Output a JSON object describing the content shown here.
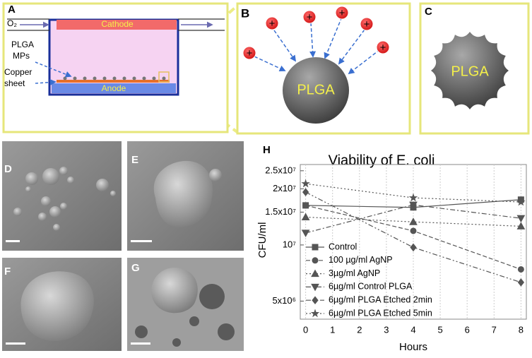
{
  "panels": {
    "A": {
      "label": "A",
      "o2": "O₂",
      "cathode": "Cathode",
      "plga_mps": [
        "PLGA",
        "MPs"
      ],
      "copper": [
        "Copper",
        "sheet"
      ],
      "anode": "Anode"
    },
    "B": {
      "label": "B",
      "particle": "PLGA"
    },
    "C": {
      "label": "C",
      "particle": "PLGA"
    },
    "D": {
      "label": "D"
    },
    "E": {
      "label": "E"
    },
    "F": {
      "label": "F"
    },
    "G": {
      "label": "G"
    },
    "H": {
      "label": "H"
    }
  },
  "chart_data": {
    "type": "line",
    "title": "Viability of E. coli",
    "xlabel": "Hours",
    "ylabel": "CFU/ml",
    "x": [
      0,
      4,
      8
    ],
    "xlim": [
      -0.2,
      8.2
    ],
    "xticks": [
      0,
      1,
      2,
      3,
      4,
      5,
      6,
      7,
      8
    ],
    "ylim": [
      4000000,
      27000000
    ],
    "yscale": "log",
    "yticks": [
      {
        "value": 5000000,
        "label": "5x10⁶"
      },
      {
        "value": 10000000,
        "label": "10⁷"
      },
      {
        "value": 15000000,
        "label": "1.5x10⁷"
      },
      {
        "value": 20000000,
        "label": "2x10⁷"
      },
      {
        "value": 25000000,
        "label": "2.5x10⁷"
      }
    ],
    "legend": "lower left",
    "series": [
      {
        "name": "Control",
        "color": "#555555",
        "marker": "square",
        "linestyle": "solid",
        "values": [
          16300000,
          15900000,
          17500000
        ]
      },
      {
        "name": "100 µg/ml AgNP",
        "color": "#555555",
        "marker": "circle",
        "linestyle": "dashed",
        "values": [
          16300000,
          11900000,
          7400000
        ]
      },
      {
        "name": "3µg/ml AgNP",
        "color": "#555555",
        "marker": "triangle",
        "linestyle": "dotted",
        "values": [
          14100000,
          13300000,
          12600000
        ]
      },
      {
        "name": "6µg/ml Control PLGA",
        "color": "#555555",
        "marker": "triangle-down",
        "linestyle": "dashdot",
        "values": [
          11600000,
          16400000,
          13900000
        ]
      },
      {
        "name": "6µg/ml PLGA Etched 2min",
        "color": "#555555",
        "marker": "diamond",
        "linestyle": "dashdotdot",
        "values": [
          19200000,
          9700000,
          6300000
        ]
      },
      {
        "name": "6µg/ml PLGA Etched 5min",
        "color": "#555555",
        "marker": "star",
        "linestyle": "dotted",
        "values": [
          21300000,
          17900000,
          17000000
        ]
      }
    ]
  }
}
